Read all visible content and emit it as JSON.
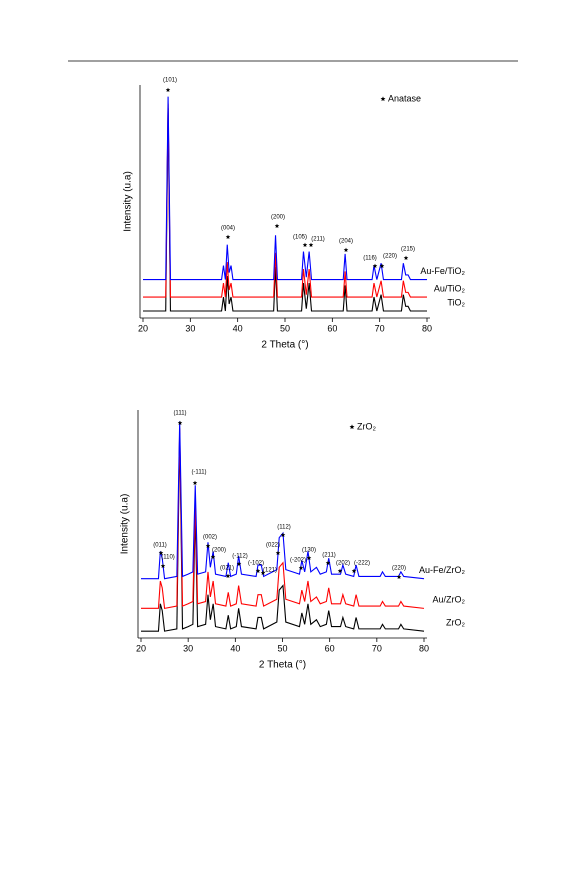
{
  "chart_data": [
    {
      "type": "line",
      "xlabel": "2 Theta (°)",
      "ylabel": "Intensity (u.a)",
      "xlim": [
        20,
        80
      ],
      "ylim": [
        0,
        100
      ],
      "xticks": [
        20,
        30,
        40,
        50,
        60,
        70,
        80
      ],
      "legend_label": "Anatase",
      "x": [
        20,
        24.8,
        25.3,
        25.8,
        36.6,
        37.0,
        37.4,
        37.8,
        38.2,
        38.6,
        39.0,
        47.6,
        48.0,
        48.4,
        53.5,
        53.9,
        54.5,
        55.1,
        55.6,
        62.3,
        62.7,
        63.1,
        68.4,
        68.8,
        69.4,
        70.3,
        70.8,
        74.6,
        75.0,
        75.5,
        76.0,
        76.5,
        80
      ],
      "series": [
        {
          "name": "Au-Fe/TiO₂",
          "color": "#0000ff",
          "values": [
            16.5,
            16.5,
            95,
            16.5,
            16.5,
            22.5,
            16.5,
            31.5,
            19.5,
            22.5,
            16.5,
            16.5,
            35.5,
            16.5,
            16.5,
            28.5,
            17.5,
            28.5,
            16.5,
            16.5,
            27.5,
            16.5,
            16.5,
            22.5,
            16.5,
            23.5,
            16.5,
            16.5,
            23.5,
            18.5,
            18.5,
            16.5,
            16.5
          ]
        },
        {
          "name": "Au/TiO₂",
          "color": "#ff0000",
          "values": [
            9,
            9,
            92,
            9,
            9,
            15,
            9,
            24,
            12,
            15,
            9,
            9,
            28,
            9,
            9,
            21,
            10,
            21,
            9,
            9,
            20,
            9,
            9,
            15,
            9,
            16,
            9,
            9,
            16,
            11,
            11,
            9,
            9
          ]
        },
        {
          "name": "TiO₂",
          "color": "#000000",
          "values": [
            3,
            3,
            90,
            3,
            3,
            9,
            3,
            18,
            6,
            9,
            3,
            3,
            22,
            3,
            3,
            15,
            4,
            15,
            3,
            3,
            14,
            3,
            3,
            9,
            3,
            10,
            3,
            3,
            10,
            5,
            5,
            3,
            3
          ]
        }
      ],
      "annotations": [
        "(101)",
        "(004)",
        "(200)",
        "(105)",
        "(211)",
        "(204)",
        "(116)",
        "(220)",
        "(215)"
      ]
    },
    {
      "type": "line",
      "xlabel": "2 Theta (°)",
      "ylabel": "Intensity (u.a)",
      "xlim": [
        20,
        80
      ],
      "ylim": [
        0,
        100
      ],
      "xticks": [
        20,
        30,
        40,
        50,
        60,
        70,
        80
      ],
      "legend_label": "ZrO₂",
      "x": [
        20,
        23.7,
        24.1,
        24.5,
        25.0,
        27.6,
        28.2,
        28.8,
        30.0,
        31.0,
        31.5,
        32.0,
        33.7,
        34.2,
        34.7,
        35.3,
        35.8,
        38.0,
        38.5,
        39.0,
        40.2,
        40.7,
        41.3,
        44.4,
        44.8,
        45.5,
        46.0,
        48.8,
        49.3,
        50.1,
        50.7,
        53.6,
        54.1,
        54.7,
        55.4,
        56.0,
        57.2,
        58.0,
        59.3,
        59.8,
        60.4,
        62.3,
        62.8,
        63.4,
        65.1,
        65.6,
        66.2,
        70.7,
        71.2,
        71.8,
        74.6,
        75.1,
        75.7,
        80
      ],
      "series": [
        {
          "name": "Au-Fe/ZrO₂",
          "color": "#0000ff",
          "values": [
            26,
            26,
            38,
            35,
            26,
            27,
            95,
            27,
            28,
            29,
            67,
            28,
            29,
            42,
            31,
            38,
            28,
            27,
            33,
            27,
            28,
            36,
            28,
            27,
            32,
            32,
            27,
            30,
            44,
            46,
            30,
            28,
            34,
            29,
            38,
            29,
            31,
            28,
            29,
            35,
            28,
            28,
            32,
            28,
            27,
            32,
            27,
            27,
            29,
            27,
            27,
            29,
            27,
            26
          ]
        },
        {
          "name": "Au/ZrO₂",
          "color": "#ff0000",
          "values": [
            13,
            13,
            25,
            22,
            13,
            14,
            92,
            14,
            15,
            16,
            60,
            15,
            16,
            29,
            18,
            25,
            15,
            14,
            20,
            14,
            15,
            23,
            15,
            14,
            19,
            19,
            14,
            17,
            31,
            33,
            17,
            15,
            21,
            16,
            25,
            16,
            18,
            15,
            16,
            22,
            15,
            15,
            19,
            15,
            14,
            19,
            14,
            14,
            16,
            14,
            14,
            16,
            14,
            13
          ]
        },
        {
          "name": "ZrO₂",
          "color": "#000000",
          "values": [
            3,
            3,
            15,
            12,
            3,
            4,
            90,
            4,
            5,
            6,
            55,
            5,
            6,
            19,
            8,
            15,
            5,
            4,
            10,
            4,
            5,
            13,
            5,
            4,
            9,
            9,
            4,
            7,
            21,
            23,
            7,
            5,
            11,
            6,
            15,
            6,
            8,
            5,
            6,
            12,
            5,
            5,
            9,
            5,
            4,
            9,
            4,
            4,
            6,
            4,
            4,
            6,
            4,
            3
          ]
        }
      ],
      "annotations": [
        "(111)",
        "(-111)",
        "(002)",
        "(200)",
        "(011)",
        "(110)",
        "(021)",
        "(-112)",
        "(-102)",
        "(121)",
        "(022)",
        "(112)",
        "(-202)",
        "(130)",
        "(211)",
        "(202)",
        "(-222)",
        "(220)"
      ]
    }
  ]
}
